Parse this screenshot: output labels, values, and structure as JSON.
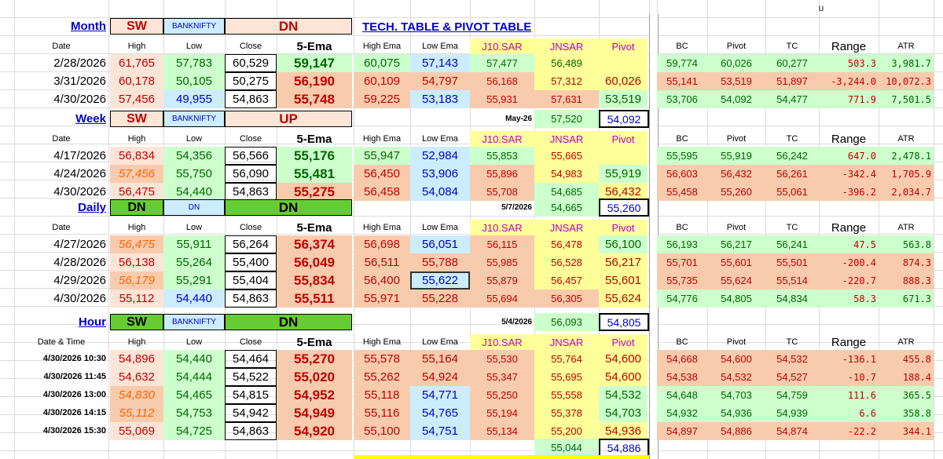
{
  "corner_label": "u",
  "title": "TECH. TABLE  &  PIVOT TABLE",
  "headers": {
    "date": "Date",
    "date_time": "Date & Time",
    "high": "High",
    "low": "Low",
    "close": "Close",
    "ema5": "5-Ema",
    "high_ema": "High Ema",
    "low_ema": "Low Ema",
    "j10sar": "J10.SAR",
    "jnsar": "JNSAR",
    "pivot": "Pivot",
    "bc": "BC",
    "tc": "TC",
    "range": "Range",
    "atr": "ATR"
  },
  "sections": [
    {
      "name": "Month",
      "sw": "SW",
      "index": "BANKNIFTY",
      "trend": "DN",
      "jn_date": "",
      "jn_val": "",
      "jn_pivot": "",
      "header_label": "Date",
      "rows": [
        {
          "date": "2/28/2026",
          "high": "61,765",
          "low": "57,783",
          "close": "60,529",
          "ema": "59,147",
          "hema": "60,075",
          "lema": "57,143",
          "j10": "57,477",
          "jn": "56,489",
          "piv": "",
          "bc": "59,774",
          "pp": "60,026",
          "tc": "60,277",
          "range": "503.3",
          "atr": "3,981.7"
        },
        {
          "date": "3/31/2026",
          "high": "60,178",
          "low": "50,105",
          "close": "50,275",
          "ema": "56,190",
          "hema": "60,109",
          "lema": "54,797",
          "j10": "56,168",
          "jn": "57,312",
          "piv": "60,026",
          "bc": "55,141",
          "pp": "53,519",
          "tc": "51,897",
          "range": "-3,244.0",
          "atr": "10,072.3"
        },
        {
          "date": "4/30/2026",
          "high": "57,456",
          "low": "49,955",
          "close": "54,863",
          "ema": "55,748",
          "hema": "59,225",
          "lema": "53,183",
          "j10": "55,931",
          "jn": "57,631",
          "piv": "53,519",
          "bc": "53,706",
          "pp": "54,092",
          "tc": "54,477",
          "range": "771.9",
          "atr": "7,501.5"
        }
      ]
    },
    {
      "name": "Week",
      "sw": "SW",
      "index": "BANKNIFTY",
      "trend": "UP",
      "jn_date": "May-26",
      "jn_val": "57,520",
      "jn_pivot": "54,092",
      "header_label": "Date",
      "rows": [
        {
          "date": "4/17/2026",
          "high": "56,834",
          "low": "54,356",
          "close": "56,566",
          "ema": "55,176",
          "hema": "55,947",
          "lema": "52,984",
          "j10": "55,853",
          "jn": "55,665",
          "piv": "",
          "bc": "55,595",
          "pp": "55,919",
          "tc": "56,242",
          "range": "647.0",
          "atr": "2,478.1"
        },
        {
          "date": "4/24/2026",
          "high": "57,456",
          "low": "55,750",
          "close": "56,090",
          "ema": "55,481",
          "hema": "56,450",
          "lema": "53,906",
          "j10": "55,896",
          "jn": "54,983",
          "piv": "55,919",
          "bc": "56,603",
          "pp": "56,432",
          "tc": "56,261",
          "range": "-342.4",
          "atr": "1,705.9"
        },
        {
          "date": "4/30/2026",
          "high": "56,475",
          "low": "54,440",
          "close": "54,863",
          "ema": "55,275",
          "hema": "56,458",
          "lema": "54,084",
          "j10": "55,708",
          "jn": "54,685",
          "piv": "56,432",
          "bc": "55,458",
          "pp": "55,260",
          "tc": "55,061",
          "range": "-396.2",
          "atr": "2,034.7"
        }
      ]
    },
    {
      "name": "Daily",
      "sw": "DN",
      "index": "DN",
      "trend": "DN",
      "jn_date": "5/7/2026",
      "jn_val": "54,665",
      "jn_pivot": "55,260",
      "header_label": "Date",
      "rows": [
        {
          "date": "4/27/2026",
          "high": "56,475",
          "low": "55,911",
          "close": "56,264",
          "ema": "56,374",
          "hema": "56,698",
          "lema": "56,051",
          "j10": "56,115",
          "jn": "56,478",
          "piv": "56,100",
          "bc": "56,193",
          "pp": "56,217",
          "tc": "56,241",
          "range": "47.5",
          "atr": "563.8"
        },
        {
          "date": "4/28/2026",
          "high": "56,138",
          "low": "55,264",
          "close": "55,400",
          "ema": "56,049",
          "hema": "56,511",
          "lema": "55,788",
          "j10": "55,985",
          "jn": "56,528",
          "piv": "56,217",
          "bc": "55,701",
          "pp": "55,601",
          "tc": "55,501",
          "range": "-200.4",
          "atr": "874.3"
        },
        {
          "date": "4/29/2026",
          "high": "56,179",
          "low": "55,291",
          "close": "55,404",
          "ema": "55,834",
          "hema": "56,400",
          "lema": "55,622",
          "j10": "55,879",
          "jn": "56,457",
          "piv": "55,601",
          "bc": "55,735",
          "pp": "55,624",
          "tc": "55,514",
          "range": "-220.7",
          "atr": "888.3"
        },
        {
          "date": "4/30/2026",
          "high": "55,112",
          "low": "54,440",
          "close": "54,863",
          "ema": "55,511",
          "hema": "55,971",
          "lema": "55,228",
          "j10": "55,694",
          "jn": "56,305",
          "piv": "55,624",
          "bc": "54,776",
          "pp": "54,805",
          "tc": "54,834",
          "range": "58.3",
          "atr": "671.3"
        }
      ]
    },
    {
      "name": "Hour",
      "sw": "SW",
      "index": "BANKNIFTY",
      "trend": "DN",
      "jn_date": "5/4/2026",
      "jn_val": "56,093",
      "jn_pivot": "54,805",
      "header_label": "Date & Time",
      "rows": [
        {
          "date": "4/30/2026 10:30",
          "high": "54,896",
          "low": "54,440",
          "close": "54,464",
          "ema": "55,270",
          "hema": "55,578",
          "lema": "55,164",
          "j10": "55,530",
          "jn": "55,764",
          "piv": "54,600",
          "bc": "54,668",
          "pp": "54,600",
          "tc": "54,532",
          "range": "-136.1",
          "atr": "455.8"
        },
        {
          "date": "4/30/2026 11:45",
          "high": "54,632",
          "low": "54,444",
          "close": "54,522",
          "ema": "55,020",
          "hema": "55,262",
          "lema": "54,924",
          "j10": "55,347",
          "jn": "55,695",
          "piv": "54,600",
          "bc": "54,538",
          "pp": "54,532",
          "tc": "54,527",
          "range": "-10.7",
          "atr": "188.4"
        },
        {
          "date": "4/30/2026 13:00",
          "high": "54,830",
          "low": "54,465",
          "close": "54,815",
          "ema": "54,952",
          "hema": "55,118",
          "lema": "54,771",
          "j10": "55,250",
          "jn": "55,558",
          "piv": "54,532",
          "bc": "54,648",
          "pp": "54,703",
          "tc": "54,759",
          "range": "111.6",
          "atr": "365.5"
        },
        {
          "date": "4/30/2026 14:15",
          "high": "55,112",
          "low": "54,753",
          "close": "54,942",
          "ema": "54,949",
          "hema": "55,116",
          "lema": "54,765",
          "j10": "55,194",
          "jn": "55,378",
          "piv": "54,703",
          "bc": "54,932",
          "pp": "54,936",
          "tc": "54,939",
          "range": "6.6",
          "atr": "358.8"
        },
        {
          "date": "4/30/2026 15:30",
          "high": "55,069",
          "low": "54,725",
          "close": "54,863",
          "ema": "54,920",
          "hema": "55,100",
          "lema": "54,751",
          "j10": "55,134",
          "jn": "55,200",
          "piv": "54,936",
          "bc": "54,897",
          "pp": "54,886",
          "tc": "54,874",
          "range": "-22.2",
          "atr": "344.1"
        }
      ]
    }
  ],
  "footer": {
    "jn": "55,044",
    "pivot": "54,886"
  }
}
